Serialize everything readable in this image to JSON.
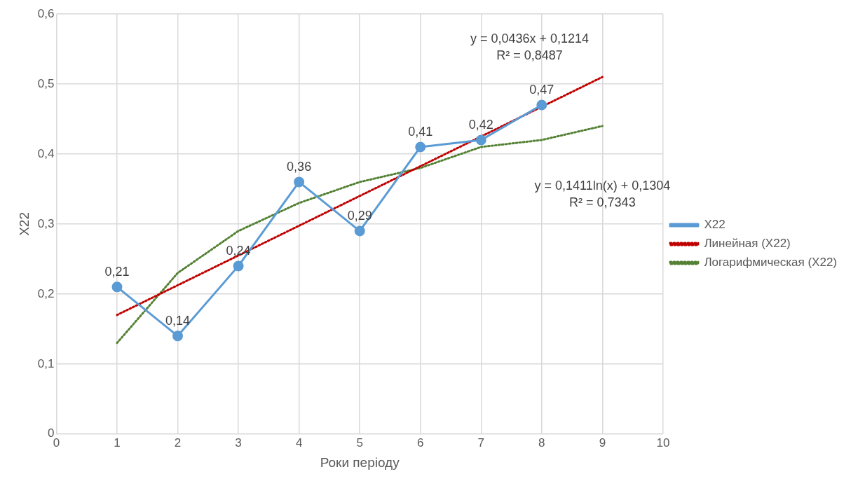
{
  "chart_data": {
    "type": "line",
    "xlabel": "Роки періоду",
    "ylabel": "X22",
    "xlim": [
      0,
      10
    ],
    "xticks": [
      0,
      1,
      2,
      3,
      4,
      5,
      6,
      7,
      8,
      9,
      10
    ],
    "ylim": [
      0,
      0.6
    ],
    "yticks": [
      0,
      {
        "value": 0.1,
        "label": "0,1"
      },
      {
        "value": 0.2,
        "label": "0,2"
      },
      {
        "value": 0.3,
        "label": "0,3"
      },
      {
        "value": 0.4,
        "label": "0,4"
      },
      {
        "value": 0.5,
        "label": "0,5"
      },
      {
        "value": 0.6,
        "label": "0,6"
      }
    ],
    "grid": true,
    "legend": "right",
    "series": [
      {
        "name": "X22",
        "color": "#5b9bd5",
        "marker": "circle",
        "line_style": "solid",
        "x": [
          1,
          2,
          3,
          4,
          5,
          6,
          7,
          8
        ],
        "values": [
          0.21,
          0.14,
          0.24,
          0.36,
          0.29,
          0.41,
          0.42,
          0.47
        ],
        "value_labels": [
          "0,21",
          "0,14",
          "0,24",
          "0,36",
          "0,29",
          "0,41",
          "0,42",
          "0,47"
        ]
      },
      {
        "name": "Линейная (X22)",
        "color": "#c00000",
        "marker": "none",
        "line_style": "dotted",
        "x": [
          1,
          9
        ],
        "values": [
          0.17,
          0.51
        ]
      },
      {
        "name": "Логарифмическая (X22)",
        "color": "#548235",
        "marker": "none",
        "line_style": "dotted",
        "x": [
          1,
          2,
          3,
          4,
          5,
          6,
          7,
          8,
          9
        ],
        "values": [
          0.13,
          0.23,
          0.29,
          0.33,
          0.36,
          0.38,
          0.41,
          0.42,
          0.44
        ]
      }
    ],
    "annotations": [
      "y = 0,0436x + 0,1214",
      "R² = 0,8487",
      "y = 0,1411ln(x) + 0,1304",
      "R² = 0,7343"
    ]
  }
}
